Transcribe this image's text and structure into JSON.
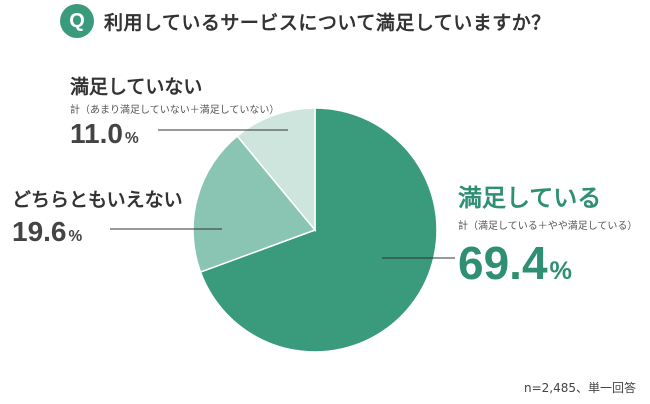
{
  "question": {
    "badge": "Q",
    "text": "利用しているサービスについて満足していますか？"
  },
  "chart_data": {
    "type": "pie",
    "start": "12 o'clock",
    "direction": "clockwise",
    "slices": [
      {
        "label": "満足している",
        "sublabel": "計（満足している＋やや満足している）",
        "value": 69.4,
        "value_text": "69.4",
        "unit": "%",
        "color": "#3a9a7c"
      },
      {
        "label": "どちらともいえない",
        "sublabel": "",
        "value": 19.6,
        "value_text": "19.6",
        "unit": "%",
        "color": "#8ac4b2"
      },
      {
        "label": "満足していない",
        "sublabel": "計（あまり満足していない＋満足していない）",
        "value": 11.0,
        "value_text": "11.0",
        "unit": "%",
        "color": "#cde5dd"
      }
    ]
  },
  "footnote": "n=2,485、単一回答",
  "colors": {
    "accent": "#3a9a7c",
    "text": "#333333",
    "leader_line": "#333333"
  }
}
